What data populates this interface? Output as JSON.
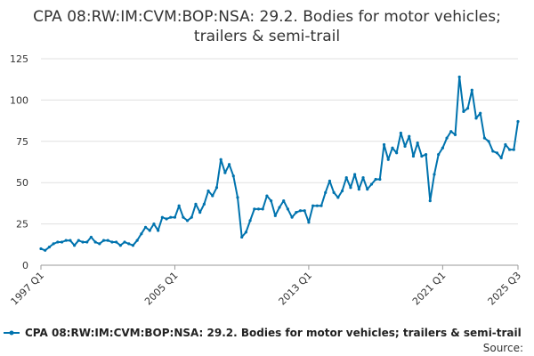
{
  "chart_data": {
    "type": "line",
    "title": "CPA 08:RW:IM:CVM:BOP:NSA: 29.2. Bodies for motor vehicles; trailers & semi-trail",
    "xlabel": "",
    "ylabel": "",
    "x_tick_labels": [
      "1997 Q1",
      "2005 Q1",
      "2013 Q1",
      "2021 Q1",
      "2025 Q3"
    ],
    "y_ticks": [
      0,
      25,
      50,
      75,
      100,
      125
    ],
    "ylim": [
      0,
      125
    ],
    "x_range": [
      "1997 Q1",
      "2025 Q3"
    ],
    "grid": true,
    "legend_position": "bottom",
    "source_label": "Source:",
    "series": [
      {
        "name": "CPA 08:RW:IM:CVM:BOP:NSA: 29.2. Bodies for motor vehicles; trailers & semi-trail",
        "color": "#0073ae",
        "values": [
          10,
          9,
          11,
          13,
          14,
          14,
          15,
          15,
          12,
          15,
          14,
          14,
          17,
          14,
          13,
          15,
          15,
          14,
          14,
          12,
          14,
          13,
          12,
          15,
          19,
          23,
          21,
          25,
          21,
          29,
          28,
          29,
          29,
          36,
          29,
          27,
          29,
          37,
          32,
          37,
          45,
          42,
          47,
          64,
          56,
          61,
          54,
          41,
          17,
          20,
          27,
          34,
          34,
          34,
          42,
          39,
          30,
          35,
          39,
          34,
          29,
          32,
          33,
          33,
          26,
          36,
          36,
          36,
          44,
          51,
          44,
          41,
          45,
          53,
          47,
          55,
          46,
          53,
          46,
          49,
          52,
          52,
          73,
          64,
          71,
          68,
          80,
          72,
          78,
          66,
          74,
          66,
          67,
          39,
          55,
          67,
          71,
          77,
          81,
          79,
          114,
          93,
          95,
          106,
          89,
          92,
          77,
          75,
          69,
          68,
          65,
          73,
          70,
          70,
          87
        ]
      }
    ]
  }
}
